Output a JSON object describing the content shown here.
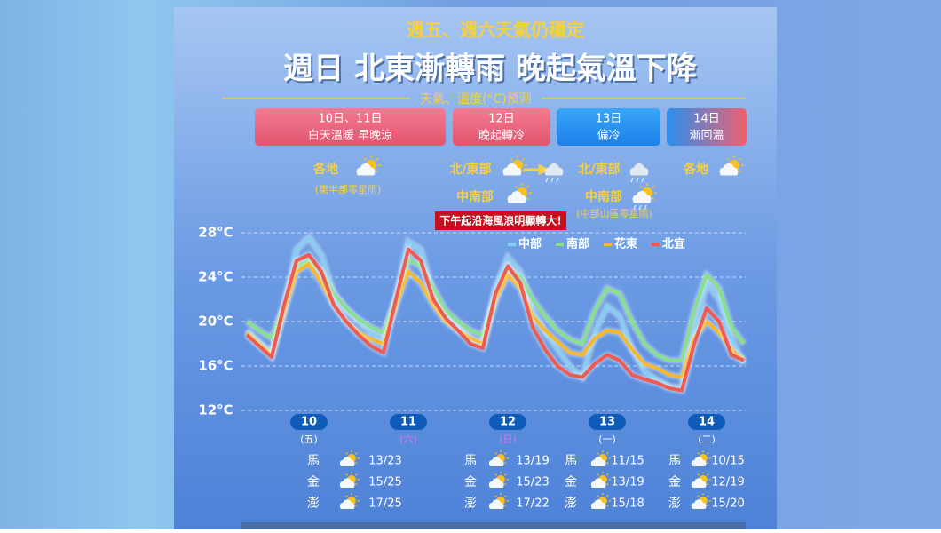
{
  "header": {
    "kicker": "週五、週六天氣仍穩定",
    "title": "週日 北東漸轉雨 晚起氣溫下降",
    "subtitle": "天氣、溫度(°C)預測"
  },
  "periods": [
    {
      "date": "10日、11日",
      "desc": "白天溫暖 早晚涼"
    },
    {
      "date": "12日",
      "desc": "晚起轉冷"
    },
    {
      "date": "13日",
      "desc": "偏冷"
    },
    {
      "date": "14日",
      "desc": "漸回溫"
    }
  ],
  "regions": [
    {
      "label": "各地",
      "note": "(東半部零星雨)"
    },
    {
      "label": "北/東部"
    },
    {
      "label": "中南部"
    },
    {
      "label": "北/東部"
    },
    {
      "label": "中南部",
      "note": "(中部山區零星雨)"
    },
    {
      "label": "各地"
    }
  ],
  "warning": "下午起沿海風浪明顯轉大!",
  "chart_data": {
    "type": "line",
    "categories": [
      null,
      null,
      null,
      null,
      null,
      "10",
      null,
      null,
      null,
      null,
      null,
      null,
      null,
      "11",
      null,
      null,
      null,
      null,
      null,
      null,
      null,
      "12",
      null,
      null,
      null,
      null,
      null,
      null,
      null,
      "13",
      null,
      null,
      null,
      null,
      null,
      null,
      null,
      "14",
      null,
      null,
      null
    ],
    "weekday_labels": [
      "(五)",
      "(六)",
      "(日)",
      "(一)",
      "(二)"
    ],
    "series": [
      {
        "name": "中部",
        "color": "#86cdf2",
        "values": [
          19.2,
          18.2,
          17.2,
          21,
          26.5,
          27.6,
          26,
          22.5,
          21,
          20,
          19,
          18.4,
          22,
          27.2,
          26.5,
          22.5,
          20.5,
          19.5,
          18.5,
          18,
          23,
          25.8,
          24.5,
          21,
          19,
          17.5,
          16,
          15,
          19,
          21.4,
          20.5,
          17.5,
          15.5,
          14.8,
          14.2,
          14,
          19,
          23.5,
          22,
          18.5,
          16.2
        ]
      },
      {
        "name": "南部",
        "color": "#86e08e",
        "values": [
          20,
          19.2,
          18.5,
          21.5,
          25,
          25.5,
          24.5,
          22.5,
          21.2,
          20.2,
          19.5,
          19,
          22,
          25.6,
          25,
          23,
          21,
          20,
          19.2,
          18.8,
          22,
          24.8,
          24,
          22,
          20.5,
          19.2,
          18.4,
          18,
          21,
          23,
          22.5,
          20,
          18,
          17,
          16.5,
          16.5,
          21,
          24.2,
          23,
          19.5,
          18
        ]
      },
      {
        "name": "花東",
        "color": "#f6b92c",
        "values": [
          19,
          18,
          17,
          21,
          24.5,
          25.2,
          23.5,
          21.5,
          20,
          19,
          18.4,
          18,
          21.5,
          24.5,
          23.5,
          21.5,
          20,
          19.2,
          18.5,
          18,
          22,
          24.2,
          23,
          20.5,
          19.2,
          18.2,
          17.2,
          17,
          18.5,
          19.2,
          19,
          17.5,
          16.2,
          15.8,
          15.2,
          15,
          18.5,
          20,
          19,
          17.5,
          16.5
        ]
      },
      {
        "name": "北宜",
        "color": "#f05a50",
        "values": [
          18.8,
          17.8,
          16.8,
          21.5,
          25.5,
          26,
          24.5,
          21.5,
          20,
          18.8,
          17.8,
          17.2,
          22,
          26.5,
          25.5,
          22,
          20.3,
          19.2,
          18,
          17.6,
          22.5,
          25,
          23.5,
          19.5,
          17.5,
          16,
          15.2,
          15,
          16.2,
          17,
          16.5,
          15.2,
          14.8,
          14.5,
          14,
          13.8,
          18,
          21.2,
          20,
          17,
          16.5
        ]
      }
    ],
    "ylim": [
      11,
      29
    ],
    "yticks": [
      {
        "value": 12,
        "label": "12°C"
      },
      {
        "value": 16,
        "label": "16°C"
      },
      {
        "value": 20,
        "label": "20°C"
      },
      {
        "value": 24,
        "label": "24°C"
      },
      {
        "value": 28,
        "label": "28°C"
      }
    ],
    "grid": true,
    "legend": "top-right"
  },
  "islands": {
    "names": [
      "馬",
      "金",
      "澎"
    ],
    "temps": [
      [
        "13/23",
        "13/19",
        "11/15",
        "10/15"
      ],
      [
        "15/25",
        "15/23",
        "13/19",
        "12/19"
      ],
      [
        "17/25",
        "17/22",
        "15/18",
        "15/20"
      ]
    ]
  }
}
